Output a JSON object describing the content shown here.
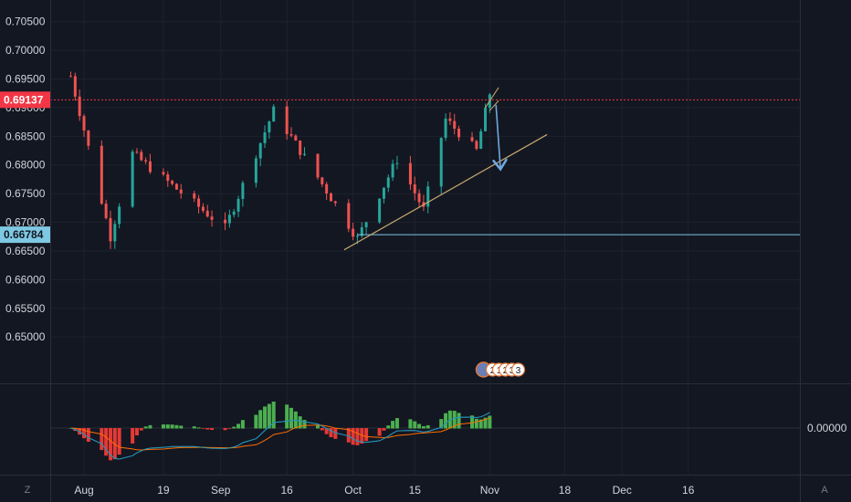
{
  "chart_data": {
    "type": "candlestick",
    "price_axis": {
      "ticks": [
        "0.70500",
        "0.70000",
        "0.69500",
        "0.69000",
        "0.68500",
        "0.68000",
        "0.67500",
        "0.67000",
        "0.66500",
        "0.66000",
        "0.65500",
        "0.65000"
      ],
      "ylim": [
        0.6465,
        0.7075
      ]
    },
    "price_labels": [
      {
        "value": "0.69137",
        "color": "#f23645",
        "line": "dotted"
      },
      {
        "value": "0.66784",
        "color": "#7ec8e3",
        "line": "solid"
      }
    ],
    "date_ticks": [
      "Aug",
      "19",
      "Sep",
      "16",
      "Oct",
      "15",
      "Nov",
      "18",
      "Dec",
      "16"
    ],
    "key_prices": [
      {
        "date": "Jul 29",
        "price": 0.6955
      },
      {
        "date": "Aug 7",
        "price": 0.6675
      },
      {
        "date": "Aug 12",
        "price": 0.682
      },
      {
        "date": "Sep 2",
        "price": 0.669
      },
      {
        "date": "Sep 13",
        "price": 0.6895
      },
      {
        "date": "Sep 25",
        "price": 0.6755
      },
      {
        "date": "Oct 2",
        "price": 0.6672
      },
      {
        "date": "Oct 11",
        "price": 0.681
      },
      {
        "date": "Oct 17",
        "price": 0.6722
      },
      {
        "date": "Oct 22",
        "price": 0.688
      },
      {
        "date": "Oct 29",
        "price": 0.6825
      },
      {
        "date": "Nov 1",
        "price": 0.6925
      },
      {
        "date": "Nov 2",
        "price": 0.6895
      }
    ],
    "trendline": {
      "from": {
        "date": "Sep 29",
        "price": 0.6652
      },
      "to": {
        "date": "Nov 14",
        "price": 0.6853
      }
    },
    "arrow": {
      "from": {
        "date": "Nov 2",
        "price": 0.6905
      },
      "to": {
        "date": "Nov 3",
        "price": 0.6795
      }
    },
    "events": {
      "labels": [
        "2",
        "1",
        "2",
        "3",
        "3"
      ]
    },
    "indicator": {
      "name": "MACD",
      "ticks": [
        "0.00000"
      ]
    }
  },
  "corner_buttons": {
    "left": "Z",
    "right": "A"
  }
}
